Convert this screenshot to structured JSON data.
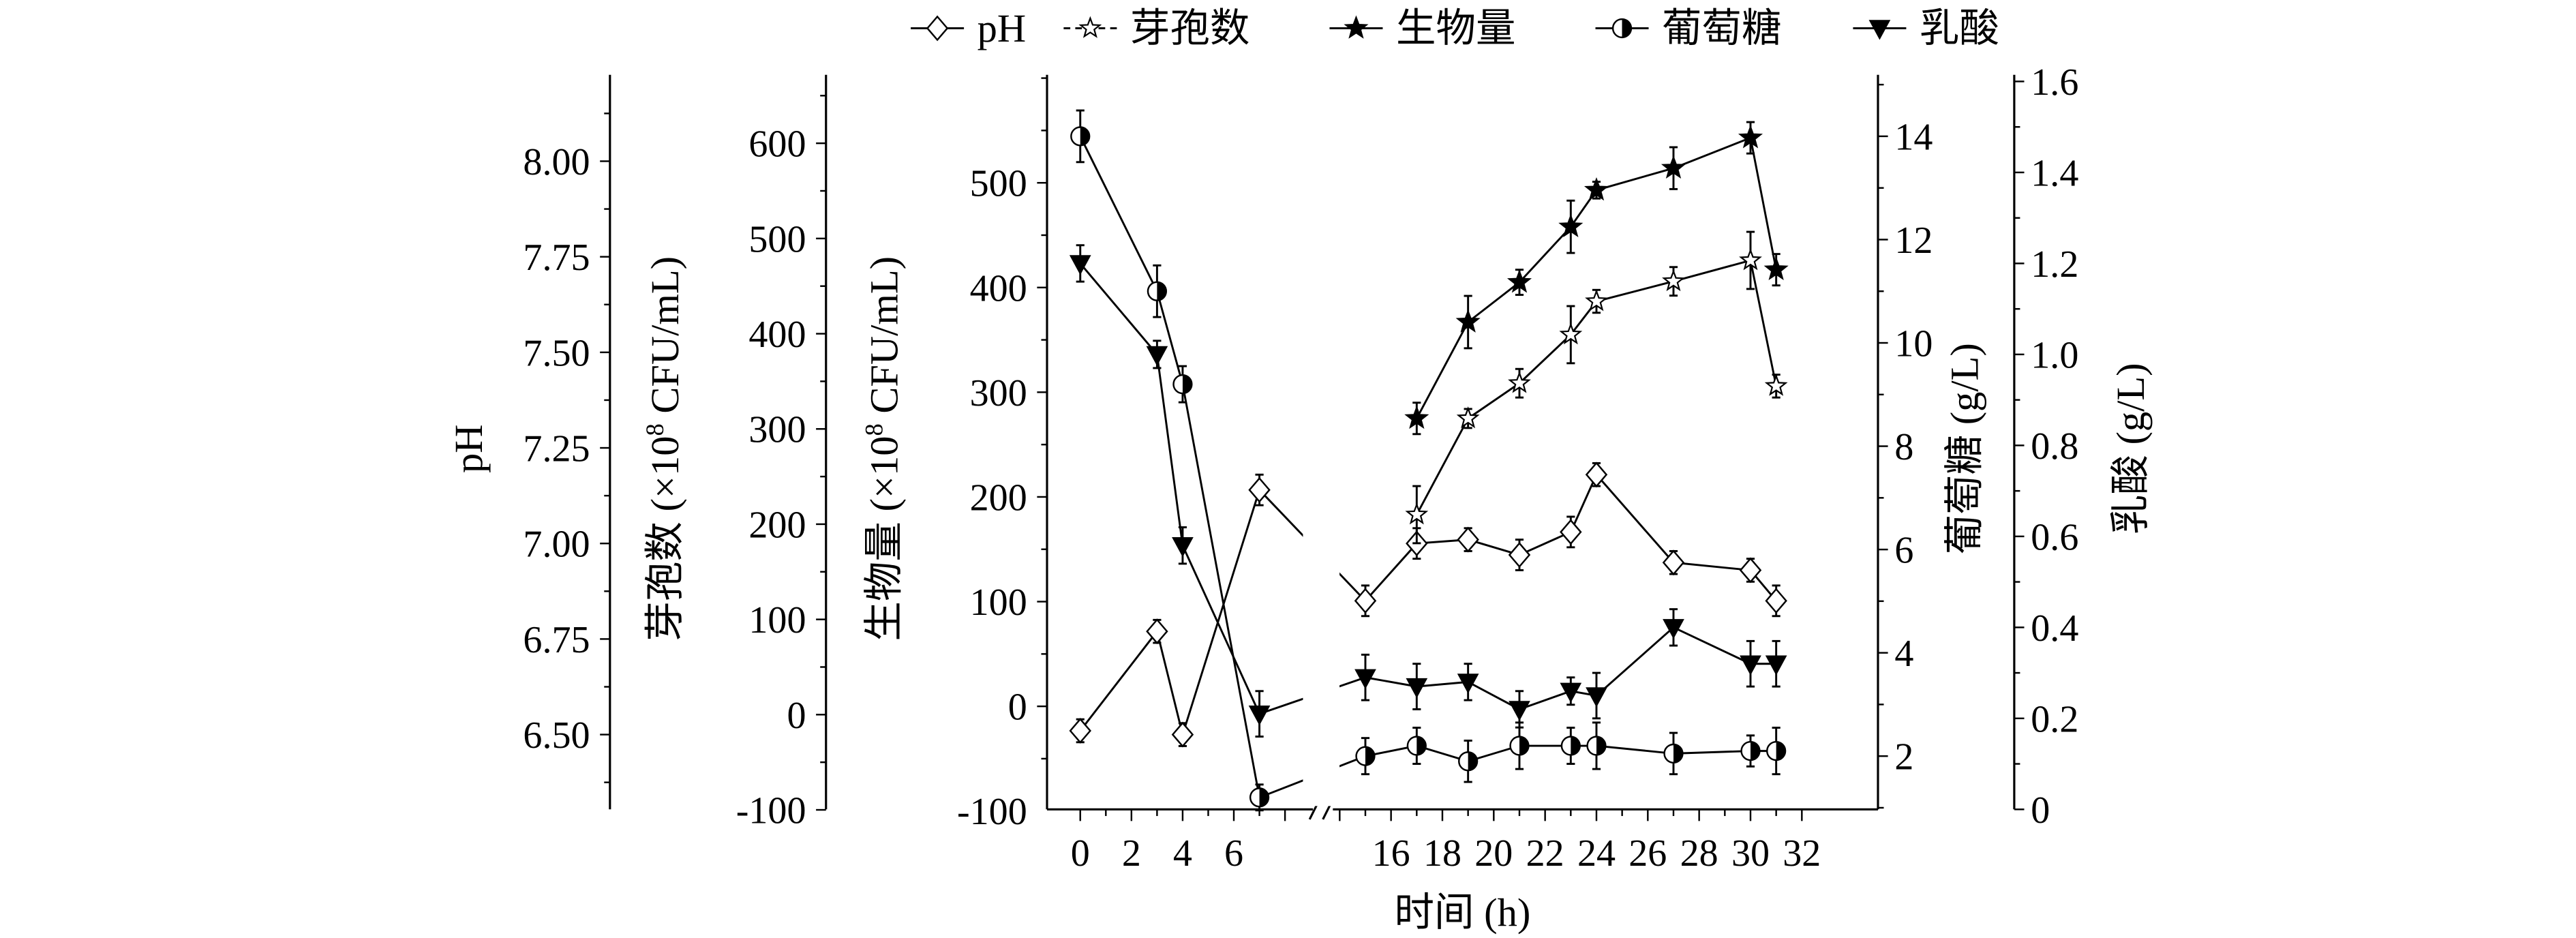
{
  "chart_data": {
    "type": "line",
    "xlabel": "时间 (h)",
    "x_ticks_left": [
      0,
      2,
      4,
      6
    ],
    "x_ticks_right": [
      16,
      18,
      20,
      22,
      24,
      26,
      28,
      30,
      32
    ],
    "x_break": [
      8,
      14
    ],
    "axes": {
      "ph": {
        "label": "pH",
        "ticks": [
          "8.00",
          "7.75",
          "7.50",
          "7.25",
          "7.00",
          "6.75",
          "6.50"
        ],
        "range": [
          6.32,
          8.18
        ]
      },
      "spore": {
        "label": "芽孢数 (×10",
        "label_sup": "8",
        "label_tail": " CFU/mL)",
        "ticks": [
          "600",
          "500",
          "400",
          "300",
          "200",
          "100",
          "0",
          "-100"
        ],
        "range": [
          -100,
          673
        ]
      },
      "biomass": {
        "label": "生物量 (×10",
        "label_sup": "8",
        "label_tail": " CFU/mL)",
        "ticks": [
          "500",
          "400",
          "300",
          "200",
          "100",
          "0",
          "-100"
        ],
        "range": [
          -100,
          590
        ]
      },
      "glucose": {
        "label": "葡萄糖 (g/L)",
        "ticks": [
          "14",
          "12",
          "10",
          "8",
          "6",
          "4",
          "2"
        ],
        "range": [
          1.0,
          15.1
        ]
      },
      "lactic": {
        "label": "乳酸 (g/L)",
        "ticks": [
          "1.6",
          "1.4",
          "1.2",
          "1.0",
          "0.8",
          "0.6",
          "0.4",
          "0.2",
          "0"
        ],
        "range": [
          0,
          1.6
        ]
      }
    },
    "series": [
      {
        "name": "pH",
        "axis": "ph",
        "marker": "diamond",
        "x": [
          0,
          3,
          4,
          7,
          15,
          17,
          19,
          21,
          23,
          24,
          27,
          30,
          31
        ],
        "y": [
          6.51,
          6.77,
          6.5,
          7.14,
          6.85,
          7.0,
          7.01,
          6.97,
          7.03,
          7.18,
          6.95,
          6.93,
          6.85
        ],
        "err": [
          0.03,
          0.03,
          0.03,
          0.04,
          0.04,
          0.04,
          0.03,
          0.04,
          0.04,
          0.03,
          0.03,
          0.03,
          0.04
        ]
      },
      {
        "name": "芽孢数",
        "axis": "spore",
        "marker": "open-star",
        "x": [
          17,
          19,
          21,
          23,
          24,
          27,
          30,
          31
        ],
        "y": [
          210,
          311,
          348,
          399,
          434,
          455,
          477,
          345
        ],
        "err": [
          30,
          10,
          15,
          30,
          12,
          15,
          30,
          12
        ]
      },
      {
        "name": "生物量",
        "axis": "biomass",
        "marker": "filled-star",
        "x": [
          17,
          19,
          21,
          23,
          24,
          27,
          30,
          31
        ],
        "y": [
          275,
          367,
          405,
          458,
          493,
          514,
          543,
          417
        ],
        "err": [
          15,
          25,
          12,
          25,
          8,
          20,
          15,
          15
        ]
      },
      {
        "name": "葡萄糖",
        "axis": "glucose",
        "marker": "half-circle",
        "x": [
          0,
          3,
          4,
          7,
          15,
          17,
          19,
          21,
          23,
          24,
          27,
          30,
          31
        ],
        "y": [
          14.0,
          11.0,
          9.2,
          1.2,
          2.0,
          2.2,
          1.9,
          2.2,
          2.2,
          2.2,
          2.05,
          2.1,
          2.1
        ],
        "err": [
          0.5,
          0.5,
          0.35,
          0.25,
          0.35,
          0.35,
          0.4,
          0.45,
          0.35,
          0.45,
          0.4,
          0.3,
          0.45
        ]
      },
      {
        "name": "乳酸",
        "axis": "lactic",
        "marker": "down-triangle",
        "x": [
          0,
          3,
          4,
          7,
          15,
          17,
          19,
          21,
          23,
          24,
          27,
          30,
          31
        ],
        "y": [
          1.2,
          1.0,
          0.58,
          0.21,
          0.29,
          0.27,
          0.28,
          0.22,
          0.26,
          0.25,
          0.4,
          0.32,
          0.32
        ],
        "err": [
          0.04,
          0.03,
          0.04,
          0.05,
          0.05,
          0.05,
          0.04,
          0.04,
          0.03,
          0.05,
          0.04,
          0.05,
          0.05
        ]
      }
    ]
  }
}
